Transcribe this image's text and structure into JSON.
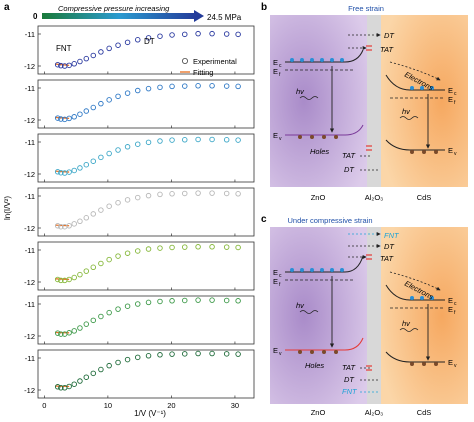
{
  "figure": {
    "panel_a_label": "a",
    "panel_b_label": "b",
    "panel_c_label": "c",
    "gradient_start": "0",
    "gradient_text": "Compressive pressure increasing",
    "gradient_end": "24.5 MPa",
    "ylabel": "ln(I/V²)",
    "xlabel": "1/V (V⁻¹)",
    "label_fnt": "FNT",
    "label_dt": "DT",
    "legend_experimental": "Experimental",
    "legend_fitting": "Fitting",
    "colors": {
      "fit": "#e8762d",
      "zno": "#b79ad1",
      "al2o3": "#d8d8d8",
      "cds": "#f6b36d",
      "electron": "#2a8fd6",
      "hole": "#7a4a2a",
      "band": "#2b2b2b",
      "tat_mark": "#e53935",
      "fnt_text": "#1fa3d6"
    }
  },
  "chart_data": [
    {
      "type": "scatter",
      "panel": "a",
      "xlabel": "1/V (V⁻¹)",
      "ylabel": "ln(I/V²)",
      "xlim": [
        -1,
        33
      ],
      "xticks": [
        0,
        10,
        20,
        30
      ],
      "yticks": [
        -11,
        -12
      ],
      "n_subplots": 7,
      "subplots": [
        {
          "pressure_rank": 0,
          "color": "#2b3aa0",
          "x": [
            2.1,
            2.6,
            3.2,
            3.9,
            4.7,
            5.6,
            6.6,
            7.7,
            8.9,
            10.2,
            11.6,
            13.1,
            14.7,
            16.4,
            18.2,
            20.1,
            22.1,
            24.2,
            26.4,
            28.7,
            30.5
          ],
          "y": [
            -11.96,
            -11.99,
            -12.0,
            -11.98,
            -11.93,
            -11.86,
            -11.77,
            -11.67,
            -11.56,
            -11.45,
            -11.35,
            -11.26,
            -11.18,
            -11.12,
            -11.07,
            -11.03,
            -11.01,
            -10.99,
            -10.99,
            -11.0,
            -11.01
          ]
        },
        {
          "pressure_rank": 1,
          "color": "#2f79c6",
          "x": [
            2.1,
            2.6,
            3.2,
            3.9,
            4.7,
            5.6,
            6.6,
            7.7,
            8.9,
            10.2,
            11.6,
            13.1,
            14.7,
            16.4,
            18.2,
            20.1,
            22.1,
            24.2,
            26.4,
            28.7,
            30.5
          ],
          "y": [
            -11.94,
            -11.97,
            -11.98,
            -11.95,
            -11.9,
            -11.82,
            -11.72,
            -11.61,
            -11.49,
            -11.37,
            -11.26,
            -11.16,
            -11.08,
            -11.02,
            -10.98,
            -10.95,
            -10.94,
            -10.93,
            -10.93,
            -10.94,
            -10.95
          ]
        },
        {
          "pressure_rank": 2,
          "color": "#3ea8c8",
          "x": [
            2.1,
            2.6,
            3.2,
            3.9,
            4.7,
            5.6,
            6.6,
            7.7,
            8.9,
            10.2,
            11.6,
            13.1,
            14.7,
            16.4,
            18.2,
            20.1,
            22.1,
            24.2,
            26.4,
            28.7,
            30.5
          ],
          "y": [
            -11.93,
            -11.96,
            -11.97,
            -11.94,
            -11.89,
            -11.81,
            -11.71,
            -11.6,
            -11.48,
            -11.36,
            -11.25,
            -11.15,
            -11.07,
            -11.01,
            -10.97,
            -10.94,
            -10.93,
            -10.92,
            -10.92,
            -10.93,
            -10.94
          ]
        },
        {
          "pressure_rank": 3,
          "color": "#b8b8b8",
          "x": [
            2.1,
            2.6,
            3.2,
            3.9,
            4.7,
            5.6,
            6.6,
            7.7,
            8.9,
            10.2,
            11.6,
            13.1,
            14.7,
            16.4,
            18.2,
            20.1,
            22.1,
            24.2,
            26.4,
            28.7,
            30.5
          ],
          "y": [
            -11.93,
            -11.96,
            -11.96,
            -11.93,
            -11.87,
            -11.79,
            -11.68,
            -11.56,
            -11.44,
            -11.32,
            -11.21,
            -11.12,
            -11.05,
            -10.99,
            -10.95,
            -10.93,
            -10.92,
            -10.91,
            -10.91,
            -10.92,
            -10.93
          ]
        },
        {
          "pressure_rank": 4,
          "color": "#86b83a",
          "x": [
            2.1,
            2.6,
            3.2,
            3.9,
            4.7,
            5.6,
            6.6,
            7.7,
            8.9,
            10.2,
            11.6,
            13.1,
            14.7,
            16.4,
            18.2,
            20.1,
            22.1,
            24.2,
            26.4,
            28.7,
            30.5
          ],
          "y": [
            -11.92,
            -11.95,
            -11.95,
            -11.92,
            -11.86,
            -11.77,
            -11.66,
            -11.54,
            -11.42,
            -11.3,
            -11.19,
            -11.1,
            -11.03,
            -10.97,
            -10.94,
            -10.92,
            -10.91,
            -10.9,
            -10.9,
            -10.91,
            -10.92
          ]
        },
        {
          "pressure_rank": 5,
          "color": "#3e9a4a",
          "x": [
            2.1,
            2.6,
            3.2,
            3.9,
            4.7,
            5.6,
            6.6,
            7.7,
            8.9,
            10.2,
            11.6,
            13.1,
            14.7,
            16.4,
            18.2,
            20.1,
            22.1,
            24.2,
            26.4,
            28.7,
            30.5
          ],
          "y": [
            -11.91,
            -11.94,
            -11.94,
            -11.9,
            -11.84,
            -11.75,
            -11.63,
            -11.51,
            -11.39,
            -11.27,
            -11.16,
            -11.07,
            -11.0,
            -10.95,
            -10.92,
            -10.9,
            -10.89,
            -10.88,
            -10.88,
            -10.89,
            -10.9
          ]
        },
        {
          "pressure_rank": 6,
          "color": "#1f6b3a",
          "x": [
            2.1,
            2.6,
            3.2,
            3.9,
            4.7,
            5.6,
            6.6,
            7.7,
            8.9,
            10.2,
            11.6,
            13.1,
            14.7,
            16.4,
            18.2,
            20.1,
            22.1,
            24.2,
            26.4,
            28.7,
            30.5
          ],
          "y": [
            -11.9,
            -11.93,
            -11.93,
            -11.89,
            -11.82,
            -11.72,
            -11.6,
            -11.48,
            -11.36,
            -11.24,
            -11.14,
            -11.05,
            -10.98,
            -10.93,
            -10.9,
            -10.88,
            -10.87,
            -10.86,
            -10.86,
            -10.87,
            -10.88
          ]
        }
      ]
    }
  ],
  "panel_b": {
    "title": "Free strain",
    "zno": "ZnO",
    "al2o3": "Al₂O₃",
    "cds": "CdS",
    "dt_top": "DT",
    "tat_top": "TAT",
    "electrons": "Electrons",
    "ec_left": "E",
    "ec_sub": "c",
    "ef_left": "E",
    "ef_sub": "f",
    "ec_right": "E",
    "ec_right_sub": "c",
    "ef_right": "E",
    "ef_right_sub": "f",
    "ev_left": "E",
    "ev_sub": "v",
    "ev_right": "E",
    "ev_right_sub": "v",
    "hv_left": "hv",
    "hv_right": "hv",
    "holes": "Holes",
    "tat_bottom": "TAT",
    "dt_bottom": "DT"
  },
  "panel_c": {
    "title": "Under compressive strain",
    "zno": "ZnO",
    "al2o3": "Al₂O₃",
    "cds": "CdS",
    "fnt_top": "FNT",
    "dt_top": "DT",
    "tat_top": "TAT",
    "electrons": "Electrons",
    "ec_left": "E",
    "ec_sub": "c",
    "ef_left": "E",
    "ef_sub": "f",
    "ec_right": "E",
    "ec_right_sub": "c",
    "ef_right": "E",
    "ef_right_sub": "f",
    "ev_left": "E",
    "ev_sub": "v",
    "ev_right": "E",
    "ev_right_sub": "v",
    "hv_left": "hv",
    "hv_right": "hv",
    "holes": "Holes",
    "tat_bottom": "TAT",
    "dt_bottom": "DT",
    "fnt_bottom": "FNT"
  }
}
